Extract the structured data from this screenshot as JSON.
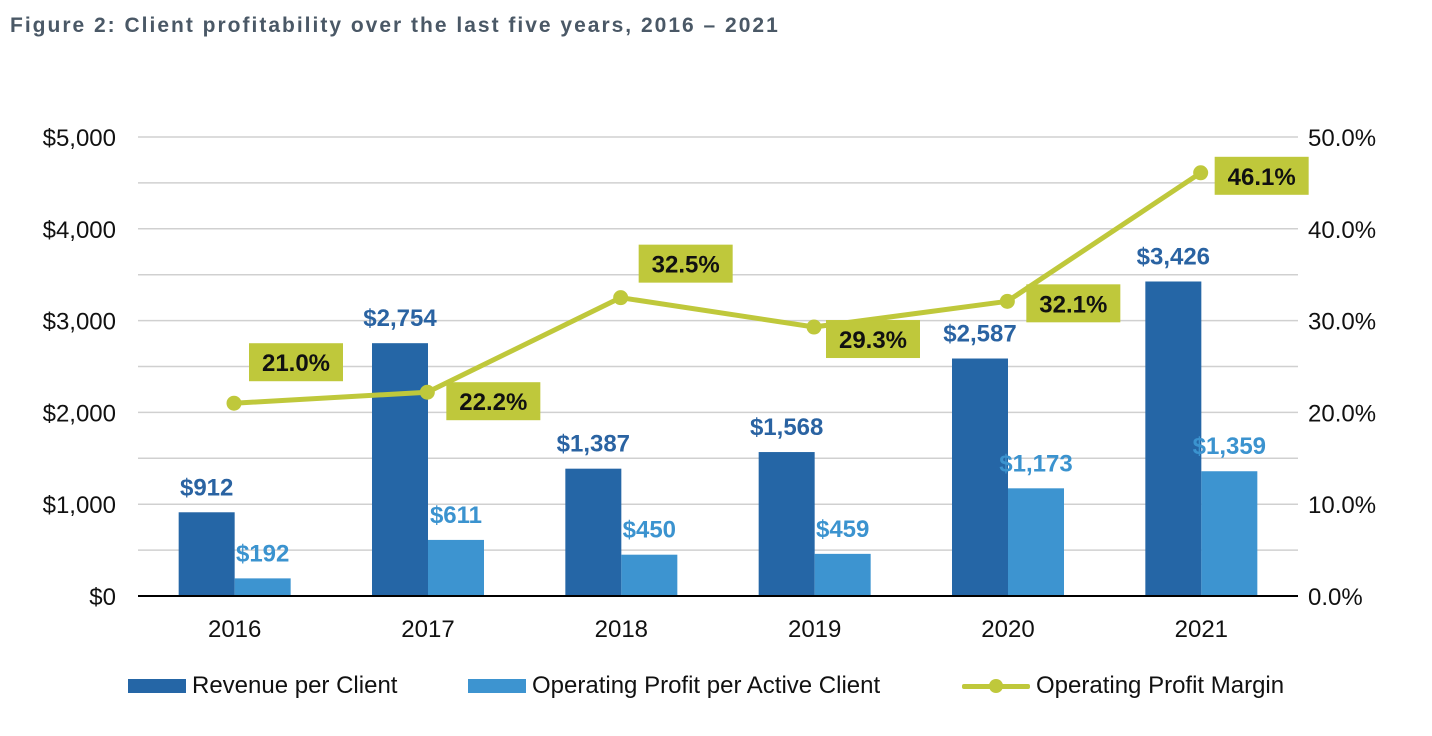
{
  "figure": {
    "title": "Figure 2: Client profitability over the last five years, 2016 – 2021"
  },
  "colors": {
    "revenue": "#2566a6",
    "profit": "#3d94d0",
    "margin": "#bfc83b",
    "revenue_label": "#2a63a2",
    "profit_label": "#3b93cf",
    "grid": "#d0d0d0",
    "axis": "#000000"
  },
  "chart_data": {
    "type": "bar",
    "categories": [
      "2016",
      "2017",
      "2018",
      "2019",
      "2020",
      "2021"
    ],
    "series": [
      {
        "name": "Revenue per Client",
        "type": "bar",
        "axis": "left",
        "values": [
          912,
          2754,
          1387,
          1568,
          2587,
          3426
        ],
        "labels": [
          "$912",
          "$2,754",
          "$1,387",
          "$1,568",
          "$2,587",
          "$3,426"
        ]
      },
      {
        "name": "Operating Profit per Active Client",
        "type": "bar",
        "axis": "left",
        "values": [
          192,
          611,
          450,
          459,
          1173,
          1359
        ],
        "labels": [
          "$192",
          "$611",
          "$450",
          "$459",
          "$1,173",
          "$1,359"
        ]
      },
      {
        "name": "Operating Profit Margin",
        "type": "line",
        "axis": "right",
        "values": [
          21.0,
          22.2,
          32.5,
          29.3,
          32.1,
          46.1
        ],
        "labels": [
          "21.0%",
          "22.2%",
          "32.5%",
          "29.3%",
          "32.1%",
          "46.1%"
        ]
      }
    ],
    "y_left": {
      "ylim": [
        0,
        5000
      ],
      "ticks": [
        0,
        1000,
        2000,
        3000,
        4000,
        5000
      ],
      "tick_labels": [
        "$0",
        "$1,000",
        "$2,000",
        "$3,000",
        "$4,000",
        "$5,000"
      ]
    },
    "y_right": {
      "ylim": [
        0,
        50
      ],
      "ticks": [
        0,
        10,
        20,
        30,
        40,
        50
      ],
      "tick_labels": [
        "0.0%",
        "10.0%",
        "20.0%",
        "30.0%",
        "40.0%",
        "50.0%"
      ]
    },
    "grid": true,
    "legend": "bottom"
  },
  "legend": {
    "items": [
      "Revenue per Client",
      "Operating Profit per Active Client",
      "Operating Profit Margin"
    ]
  }
}
